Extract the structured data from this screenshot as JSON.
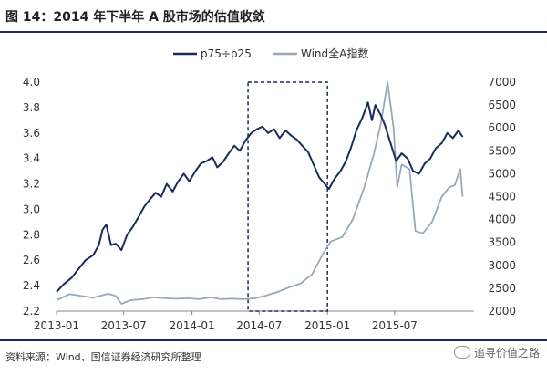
{
  "header": {
    "title": "图 14：2014 年下半年 A 股市场的估值收敛"
  },
  "footer": {
    "source": "资料来源：Wind、国信证券经济研究所整理",
    "watermark": "追寻价值之路"
  },
  "colors": {
    "series_a": "#1a2c5b",
    "series_b": "#9aa8b6",
    "box": "#1a2c5b"
  },
  "chart_data": {
    "type": "line",
    "legend_position": "top-center",
    "x_ticks": [
      "2013-01",
      "2013-07",
      "2014-01",
      "2014-07",
      "2015-01",
      "2015-07"
    ],
    "x_range": [
      "2013-01-01",
      "2016-01-31"
    ],
    "y_left": {
      "range": [
        2.2,
        4.0
      ],
      "ticks": [
        "2.2",
        "2.4",
        "2.6",
        "2.8",
        "3.0",
        "3.2",
        "3.4",
        "3.6",
        "3.8",
        "4.0"
      ]
    },
    "y_right": {
      "range": [
        2000,
        7000
      ],
      "ticks": [
        "2000",
        "2500",
        "3000",
        "3500",
        "4000",
        "4500",
        "5000",
        "5500",
        "6000",
        "6500",
        "7000"
      ]
    },
    "highlight_box": {
      "x": [
        "2014-06-01",
        "2015-01-01"
      ],
      "y_left": [
        2.2,
        4.0
      ]
    },
    "series": [
      {
        "name": "p75÷p25",
        "axis": "left",
        "points": [
          [
            "2013-01-01",
            2.35
          ],
          [
            "2013-01-20",
            2.41
          ],
          [
            "2013-02-10",
            2.46
          ],
          [
            "2013-03-01",
            2.53
          ],
          [
            "2013-03-20",
            2.6
          ],
          [
            "2013-04-10",
            2.64
          ],
          [
            "2013-04-25",
            2.72
          ],
          [
            "2013-05-05",
            2.84
          ],
          [
            "2013-05-15",
            2.88
          ],
          [
            "2013-05-28",
            2.72
          ],
          [
            "2013-06-10",
            2.73
          ],
          [
            "2013-06-25",
            2.68
          ],
          [
            "2013-07-10",
            2.8
          ],
          [
            "2013-07-25",
            2.86
          ],
          [
            "2013-08-10",
            2.94
          ],
          [
            "2013-08-25",
            3.02
          ],
          [
            "2013-09-10",
            3.08
          ],
          [
            "2013-09-25",
            3.13
          ],
          [
            "2013-10-10",
            3.1
          ],
          [
            "2013-10-25",
            3.2
          ],
          [
            "2013-11-10",
            3.14
          ],
          [
            "2013-11-25",
            3.22
          ],
          [
            "2013-12-10",
            3.28
          ],
          [
            "2013-12-25",
            3.22
          ],
          [
            "2014-01-10",
            3.3
          ],
          [
            "2014-01-25",
            3.36
          ],
          [
            "2014-02-10",
            3.38
          ],
          [
            "2014-02-25",
            3.41
          ],
          [
            "2014-03-10",
            3.33
          ],
          [
            "2014-03-25",
            3.37
          ],
          [
            "2014-04-10",
            3.44
          ],
          [
            "2014-04-25",
            3.5
          ],
          [
            "2014-05-10",
            3.46
          ],
          [
            "2014-05-25",
            3.54
          ],
          [
            "2014-06-10",
            3.6
          ],
          [
            "2014-06-25",
            3.63
          ],
          [
            "2014-07-10",
            3.65
          ],
          [
            "2014-07-25",
            3.6
          ],
          [
            "2014-08-10",
            3.63
          ],
          [
            "2014-08-25",
            3.56
          ],
          [
            "2014-09-10",
            3.62
          ],
          [
            "2014-09-25",
            3.58
          ],
          [
            "2014-10-10",
            3.55
          ],
          [
            "2014-10-25",
            3.5
          ],
          [
            "2014-11-10",
            3.45
          ],
          [
            "2014-11-25",
            3.35
          ],
          [
            "2014-12-10",
            3.25
          ],
          [
            "2014-12-25",
            3.2
          ],
          [
            "2015-01-05",
            3.16
          ],
          [
            "2015-01-20",
            3.24
          ],
          [
            "2015-02-05",
            3.3
          ],
          [
            "2015-02-20",
            3.38
          ],
          [
            "2015-03-05",
            3.48
          ],
          [
            "2015-03-20",
            3.62
          ],
          [
            "2015-04-05",
            3.72
          ],
          [
            "2015-04-20",
            3.84
          ],
          [
            "2015-05-01",
            3.7
          ],
          [
            "2015-05-10",
            3.82
          ],
          [
            "2015-05-25",
            3.74
          ],
          [
            "2015-06-05",
            3.66
          ],
          [
            "2015-06-20",
            3.52
          ],
          [
            "2015-07-05",
            3.38
          ],
          [
            "2015-07-20",
            3.44
          ],
          [
            "2015-08-05",
            3.4
          ],
          [
            "2015-08-20",
            3.3
          ],
          [
            "2015-09-05",
            3.28
          ],
          [
            "2015-09-20",
            3.36
          ],
          [
            "2015-10-05",
            3.4
          ],
          [
            "2015-10-20",
            3.48
          ],
          [
            "2015-11-05",
            3.52
          ],
          [
            "2015-11-20",
            3.6
          ],
          [
            "2015-12-05",
            3.56
          ],
          [
            "2015-12-20",
            3.62
          ],
          [
            "2015-12-31",
            3.57
          ]
        ]
      },
      {
        "name": "Wind全A指数",
        "axis": "right",
        "points": [
          [
            "2013-01-01",
            2240
          ],
          [
            "2013-02-05",
            2370
          ],
          [
            "2013-03-10",
            2330
          ],
          [
            "2013-04-10",
            2290
          ],
          [
            "2013-05-20",
            2380
          ],
          [
            "2013-06-10",
            2330
          ],
          [
            "2013-06-25",
            2160
          ],
          [
            "2013-07-20",
            2240
          ],
          [
            "2013-08-20",
            2260
          ],
          [
            "2013-09-20",
            2300
          ],
          [
            "2013-10-20",
            2280
          ],
          [
            "2013-11-20",
            2270
          ],
          [
            "2013-12-20",
            2280
          ],
          [
            "2014-01-20",
            2260
          ],
          [
            "2014-02-20",
            2300
          ],
          [
            "2014-03-20",
            2260
          ],
          [
            "2014-04-20",
            2270
          ],
          [
            "2014-05-20",
            2260
          ],
          [
            "2014-06-20",
            2280
          ],
          [
            "2014-07-20",
            2340
          ],
          [
            "2014-08-20",
            2420
          ],
          [
            "2014-09-20",
            2520
          ],
          [
            "2014-10-20",
            2600
          ],
          [
            "2014-11-20",
            2800
          ],
          [
            "2014-12-20",
            3250
          ],
          [
            "2015-01-10",
            3520
          ],
          [
            "2015-02-10",
            3620
          ],
          [
            "2015-03-10",
            4000
          ],
          [
            "2015-04-10",
            4700
          ],
          [
            "2015-05-05",
            5400
          ],
          [
            "2015-05-25",
            6100
          ],
          [
            "2015-06-12",
            7000
          ],
          [
            "2015-06-28",
            6000
          ],
          [
            "2015-07-08",
            4700
          ],
          [
            "2015-07-20",
            5200
          ],
          [
            "2015-08-10",
            5100
          ],
          [
            "2015-08-26",
            3750
          ],
          [
            "2015-09-15",
            3700
          ],
          [
            "2015-10-10",
            3950
          ],
          [
            "2015-11-05",
            4500
          ],
          [
            "2015-11-25",
            4700
          ],
          [
            "2015-12-10",
            4750
          ],
          [
            "2015-12-25",
            5100
          ],
          [
            "2015-12-31",
            4500
          ]
        ]
      }
    ]
  }
}
